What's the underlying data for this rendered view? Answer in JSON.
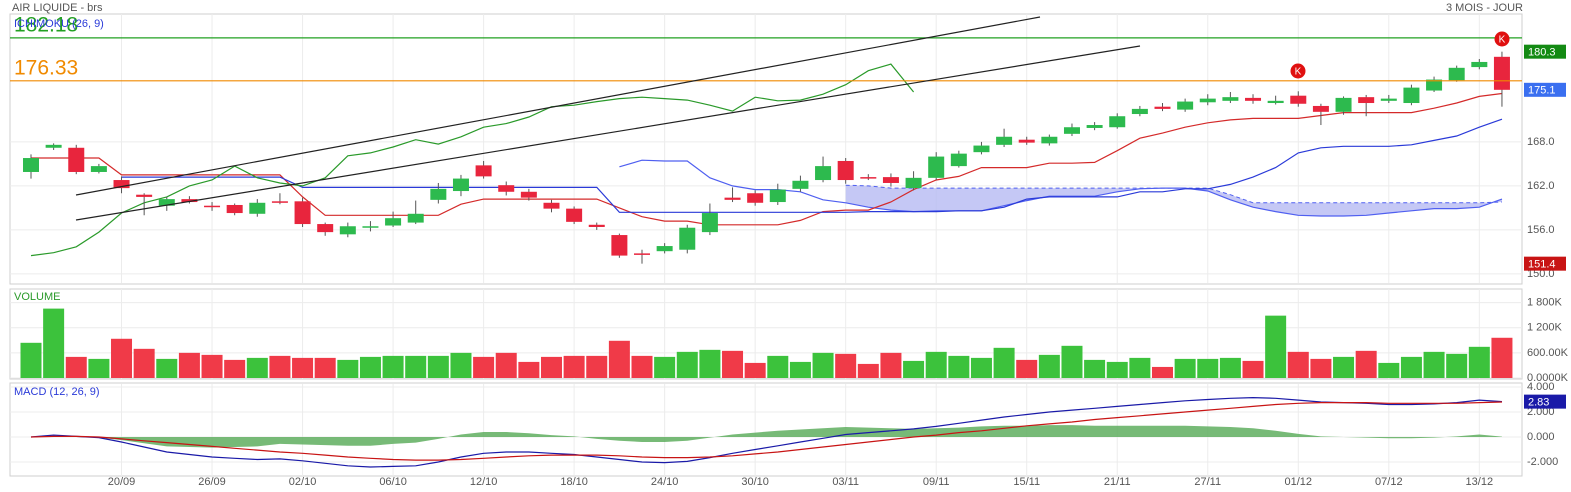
{
  "chart_data": [
    {
      "type": "candlestick",
      "title": "AIR LIQUIDE - brs",
      "subtitle": "3 MOIS - JOUR",
      "indicator": "ICHIMOKU (26, 9)",
      "categories": [
        null,
        null,
        null,
        null,
        "20/09",
        null,
        null,
        null,
        "26/09",
        null,
        null,
        null,
        "02/10",
        null,
        null,
        null,
        "06/10",
        null,
        null,
        null,
        "12/10",
        null,
        null,
        null,
        "18/10",
        null,
        null,
        null,
        "24/10",
        null,
        null,
        null,
        "30/10",
        null,
        null,
        null,
        "03/11",
        null,
        null,
        null,
        "09/11",
        null,
        null,
        null,
        "15/11",
        null,
        null,
        null,
        "21/11",
        null,
        null,
        null,
        "27/11",
        null,
        null,
        null,
        "01/12",
        null,
        null,
        null,
        "07/12",
        null,
        null,
        null,
        "13/12",
        null
      ],
      "open": [
        163.9,
        167.2,
        167.2,
        163.9,
        162.8,
        160.8,
        159.3,
        160.2,
        159.3,
        159.4,
        158.2,
        159.9,
        159.9,
        156.8,
        155.4,
        156.3,
        156.6,
        157,
        160.1,
        161.3,
        164.8,
        162.1,
        161.2,
        159.7,
        158.9,
        156.7,
        155.3,
        152.8,
        153.1,
        153.3,
        155.7,
        160.4,
        161,
        159.8,
        161.6,
        162.8,
        165.4,
        163.2,
        163.2,
        161.7,
        163.1,
        164.7,
        166.6,
        167.6,
        168.3,
        167.8,
        169.1,
        169.9,
        170,
        171.8,
        172.8,
        172.4,
        173.4,
        173.6,
        174,
        173.3,
        174.3,
        172.9,
        172.1,
        174.1,
        173.6,
        173.3,
        175,
        176.4,
        178.2,
        179.6
      ],
      "high": [
        166.3,
        167.8,
        167.6,
        165,
        163.3,
        161,
        160.5,
        160.6,
        159.8,
        159.6,
        160.2,
        161,
        160.4,
        157,
        157,
        157.2,
        158.5,
        160,
        162.4,
        163.5,
        165.4,
        162.6,
        161.6,
        160.1,
        159.2,
        157,
        155.5,
        153.3,
        154.2,
        156.7,
        159.6,
        161.8,
        161.4,
        162.3,
        163.4,
        166,
        165.8,
        163.6,
        163.7,
        164,
        166.6,
        166.8,
        168,
        169.8,
        168.7,
        169,
        170.5,
        170.7,
        171.9,
        172.9,
        173.3,
        173.9,
        174.5,
        174.8,
        174.5,
        174.3,
        174.9,
        173.2,
        174.2,
        174.4,
        174.4,
        175.8,
        176.9,
        178.4,
        179.3,
        180.3
      ],
      "low": [
        163,
        166.9,
        163.6,
        163.7,
        161,
        158,
        158.6,
        159.6,
        158.6,
        158,
        157.8,
        159.5,
        156.4,
        155.2,
        155,
        155.8,
        156.4,
        156.8,
        159.6,
        160.6,
        163,
        160.7,
        160,
        158.4,
        156.8,
        156,
        152.2,
        151.4,
        152.8,
        152.8,
        155.3,
        159.8,
        159.3,
        159.4,
        161.2,
        162.5,
        162.3,
        162.8,
        161.9,
        161.4,
        162.8,
        164.5,
        166.3,
        167.3,
        167.6,
        167.5,
        168.8,
        169.6,
        169.8,
        171.5,
        172.2,
        172.1,
        173,
        173.3,
        173.2,
        173.1,
        172.8,
        170.3,
        171.7,
        171.5,
        173.3,
        173,
        174.8,
        176.2,
        177.9,
        172.8
      ],
      "close": [
        165.8,
        167.6,
        163.9,
        164.7,
        161.7,
        160.5,
        160.2,
        159.8,
        159.1,
        158.3,
        159.7,
        159.7,
        156.8,
        155.7,
        156.5,
        156.5,
        157.6,
        158.2,
        161.6,
        163,
        163.3,
        161.2,
        160.4,
        158.9,
        157.1,
        156.4,
        152.5,
        152.6,
        153.8,
        156.3,
        158.3,
        160.1,
        159.7,
        161.5,
        162.7,
        164.7,
        162.8,
        163,
        162.4,
        163.1,
        166,
        166.4,
        167.5,
        168.7,
        167.9,
        168.7,
        170,
        170.3,
        171.5,
        172.5,
        172.5,
        173.5,
        173.9,
        174.1,
        173.6,
        173.6,
        173.2,
        172.1,
        174,
        173.3,
        173.9,
        175.4,
        176.5,
        178.1,
        178.9,
        175.1
      ],
      "up_color": "#2dba4e",
      "down_color": "#e8253d",
      "series": [
        {
          "color": "#d42a2a",
          "values": [
            165.8,
            165.8,
            165.8,
            165.8,
            163.5,
            163.5,
            163.5,
            163.5,
            163.5,
            163.5,
            163.5,
            163.5,
            160.5,
            158,
            158,
            158,
            158,
            158,
            158,
            159.5,
            160.2,
            160.2,
            160.2,
            160.2,
            160.2,
            160.2,
            159,
            157.8,
            157.2,
            157.2,
            156.7,
            156.7,
            156.7,
            156.7,
            157.3,
            158.5,
            158.7,
            158.7,
            159.8,
            161.5,
            162.8,
            163.3,
            164.5,
            164.5,
            164.5,
            165.1,
            165.1,
            165.2,
            166.8,
            168.5,
            169.2,
            170,
            170.6,
            171,
            171.2,
            171.2,
            171.2,
            171.6,
            172,
            172,
            172,
            172,
            172.6,
            173.3,
            174.2,
            174.6
          ]
        },
        {
          "color": "#2a3ad8",
          "values": [
            null,
            null,
            null,
            null,
            163.2,
            163.2,
            163.2,
            163.2,
            163.2,
            163.2,
            163.2,
            163.2,
            161.8,
            161.8,
            161.8,
            161.8,
            161.8,
            161.8,
            161.8,
            161.8,
            161.8,
            161.8,
            161.8,
            161.8,
            161.8,
            161.8,
            158.4,
            158.4,
            158.4,
            158.4,
            158.4,
            158.4,
            158.4,
            158.4,
            158.4,
            158.4,
            158.4,
            158.5,
            158.5,
            158.5,
            158.5,
            158.6,
            158.6,
            159.1,
            160.2,
            160.5,
            160.5,
            160.5,
            160.5,
            161.2,
            161.2,
            161.6,
            161.6,
            162.2,
            163.2,
            164.5,
            166.5,
            167.2,
            167.4,
            167.4,
            167.4,
            167.6,
            168.2,
            168.8,
            170,
            171.1
          ]
        },
        {
          "color": "#2a9a2a",
          "values": [
            152.5,
            152.9,
            153.7,
            155.7,
            158.3,
            159.7,
            160.5,
            162,
            162.8,
            164.7,
            163.1,
            162.4,
            162,
            163.1,
            166.1,
            166.5,
            167.3,
            168.3,
            167.7,
            168.7,
            170,
            170.5,
            171.4,
            172.8,
            173,
            173.5,
            173.9,
            174.1,
            173.9,
            173.7,
            173,
            172.2,
            174.1,
            173.6,
            173.7,
            174.5,
            175.8,
            177.7,
            178.6,
            174.8,
            null,
            null,
            null,
            null,
            null,
            null,
            null,
            null,
            null,
            null,
            null,
            null,
            null,
            null,
            null,
            null,
            null,
            null,
            null,
            null,
            null,
            null,
            null,
            null,
            null,
            null
          ]
        }
      ],
      "cloud": {
        "color": "#4f5ff0",
        "fill": "#b7baf2",
        "span_a": [
          null,
          null,
          null,
          null,
          null,
          null,
          null,
          null,
          null,
          null,
          null,
          null,
          null,
          null,
          null,
          null,
          null,
          null,
          null,
          null,
          null,
          null,
          null,
          null,
          null,
          null,
          164.6,
          165.5,
          165.4,
          165.4,
          163.1,
          162,
          161.5,
          161.5,
          161.2,
          160.1,
          159.7,
          159.1,
          158.7,
          158.5,
          158.6,
          158.6,
          158.6,
          159.3,
          160,
          160.6,
          160.6,
          160.6,
          161.2,
          161.6,
          161.7,
          161.7,
          161.3,
          160.1,
          159.1,
          158.5,
          158,
          157.9,
          157.9,
          158,
          158.3,
          158.6,
          158.9,
          158.9,
          159.1,
          160.2
        ],
        "span_b": [
          null,
          null,
          null,
          null,
          null,
          null,
          null,
          null,
          null,
          null,
          null,
          null,
          null,
          null,
          null,
          null,
          null,
          null,
          null,
          null,
          null,
          null,
          null,
          null,
          null,
          null,
          null,
          null,
          null,
          null,
          null,
          null,
          null,
          null,
          null,
          null,
          162.1,
          162,
          161.7,
          161.7,
          161.7,
          161.7,
          161.7,
          161.7,
          161.7,
          161.7,
          161.7,
          161.7,
          161.7,
          161.7,
          161.7,
          161.7,
          161.7,
          160.8,
          159.7,
          159.7,
          159.7,
          159.7,
          159.7,
          159.7,
          159.7,
          159.7,
          159.7,
          159.7,
          159.7,
          159.8
        ]
      },
      "hlines": [
        {
          "value": 182.18,
          "color": "#22a022"
        },
        {
          "value": 176.33,
          "color": "#f08a00"
        }
      ],
      "tags": [
        {
          "value": 180.3,
          "color": "#138a13"
        },
        {
          "value": 175.1,
          "color": "#3a6ff0"
        },
        {
          "value": 151.4,
          "color": "#c81414"
        }
      ],
      "signals": [
        "K",
        "K"
      ],
      "ylim": [
        148.9,
        185.3
      ],
      "yticks": [
        {
          "value": 150,
          "label": "150.0"
        },
        {
          "value": 156,
          "label": "156.0"
        },
        {
          "value": 162,
          "label": "162.0"
        },
        {
          "value": 168,
          "label": "168.0"
        }
      ],
      "grid": true
    },
    {
      "type": "bar",
      "title": "VOLUME",
      "title_color": "#2a9a2a",
      "values": [
        840000,
        1656000,
        504000,
        456000,
        936000,
        696000,
        456000,
        600000,
        552000,
        432000,
        480000,
        528000,
        480000,
        480000,
        432000,
        504000,
        528000,
        528000,
        528000,
        600000,
        504000,
        600000,
        384000,
        504000,
        528000,
        528000,
        888000,
        528000,
        504000,
        624000,
        672000,
        648000,
        360000,
        528000,
        384000,
        600000,
        576000,
        336000,
        600000,
        408000,
        624000,
        528000,
        480000,
        720000,
        432000,
        552000,
        768000,
        432000,
        384000,
        480000,
        264000,
        456000,
        456000,
        480000,
        408000,
        1488000,
        624000,
        456000,
        504000,
        648000,
        360000,
        504000,
        624000,
        576000,
        744000,
        960000
      ],
      "up_color": "#3cc23c",
      "down_color": "#f03a48",
      "ylim": [
        0,
        2100000
      ],
      "yticks": [
        {
          "value": 0,
          "label": "0.0000K"
        },
        {
          "value": 600000,
          "label": "600.00K"
        },
        {
          "value": 1200000,
          "label": "1 200K"
        },
        {
          "value": 1800000,
          "label": "1 800K"
        }
      ],
      "grid": true
    },
    {
      "type": "line",
      "title": "MACD (12, 26, 9)",
      "title_color": "#2a3ad8",
      "series": [
        {
          "type": "area",
          "color": "#5fae5f",
          "values": [
            0,
            0.1,
            0,
            -0.05,
            -0.25,
            -0.5,
            -0.75,
            -0.8,
            -0.85,
            -0.8,
            -0.75,
            -0.55,
            -0.6,
            -0.65,
            -0.7,
            -0.7,
            -0.55,
            -0.45,
            -0.15,
            0.2,
            0.4,
            0.4,
            0.3,
            0.15,
            0.05,
            -0.15,
            -0.3,
            -0.4,
            -0.4,
            -0.3,
            -0.05,
            0.2,
            0.35,
            0.5,
            0.6,
            0.7,
            0.8,
            0.75,
            0.7,
            0.65,
            0.7,
            0.75,
            0.85,
            0.9,
            0.9,
            0.95,
            0.95,
            0.9,
            0.9,
            0.9,
            0.9,
            0.9,
            0.85,
            0.8,
            0.7,
            0.5,
            0.25,
            0.05,
            0,
            -0.05,
            -0.1,
            -0.1,
            -0.05,
            0.05,
            0.2,
            0.03
          ]
        },
        {
          "color": "#1a1aa8",
          "values": [
            0,
            0.15,
            0.05,
            -0.05,
            -0.4,
            -0.8,
            -1.2,
            -1.4,
            -1.6,
            -1.7,
            -1.8,
            -1.75,
            -1.9,
            -2.1,
            -2.3,
            -2.4,
            -2.35,
            -2.3,
            -2,
            -1.6,
            -1.3,
            -1.2,
            -1.2,
            -1.3,
            -1.4,
            -1.6,
            -1.8,
            -2,
            -2.05,
            -1.95,
            -1.65,
            -1.3,
            -1,
            -0.7,
            -0.4,
            -0.1,
            0.2,
            0.35,
            0.5,
            0.65,
            0.85,
            1.1,
            1.35,
            1.6,
            1.8,
            2,
            2.15,
            2.3,
            2.45,
            2.6,
            2.75,
            2.9,
            3,
            3.1,
            3.15,
            3.1,
            2.95,
            2.8,
            2.75,
            2.7,
            2.6,
            2.6,
            2.65,
            2.75,
            2.95,
            2.83
          ]
        },
        {
          "color": "#c81414",
          "values": [
            0,
            0.05,
            0.05,
            0,
            -0.15,
            -0.3,
            -0.45,
            -0.6,
            -0.75,
            -0.9,
            -1.05,
            -1.2,
            -1.3,
            -1.45,
            -1.6,
            -1.7,
            -1.8,
            -1.85,
            -1.85,
            -1.8,
            -1.7,
            -1.6,
            -1.5,
            -1.45,
            -1.45,
            -1.45,
            -1.5,
            -1.6,
            -1.65,
            -1.65,
            -1.6,
            -1.5,
            -1.35,
            -1.2,
            -1,
            -0.8,
            -0.6,
            -0.4,
            -0.2,
            0,
            0.15,
            0.35,
            0.5,
            0.7,
            0.9,
            1.05,
            1.2,
            1.4,
            1.55,
            1.7,
            1.85,
            2,
            2.15,
            2.3,
            2.45,
            2.6,
            2.7,
            2.75,
            2.75,
            2.75,
            2.7,
            2.7,
            2.7,
            2.7,
            2.75,
            2.8
          ]
        }
      ],
      "tags": [
        {
          "value": 2.83,
          "color": "#1a1aa8"
        }
      ],
      "ylim": [
        -3.04,
        4.16
      ],
      "yticks": [
        {
          "value": -2,
          "label": "-2.000"
        },
        {
          "value": 0,
          "label": "0.000"
        },
        {
          "value": 2,
          "label": "2.000"
        },
        {
          "value": 4,
          "label": "4.000"
        }
      ],
      "grid": true
    }
  ]
}
